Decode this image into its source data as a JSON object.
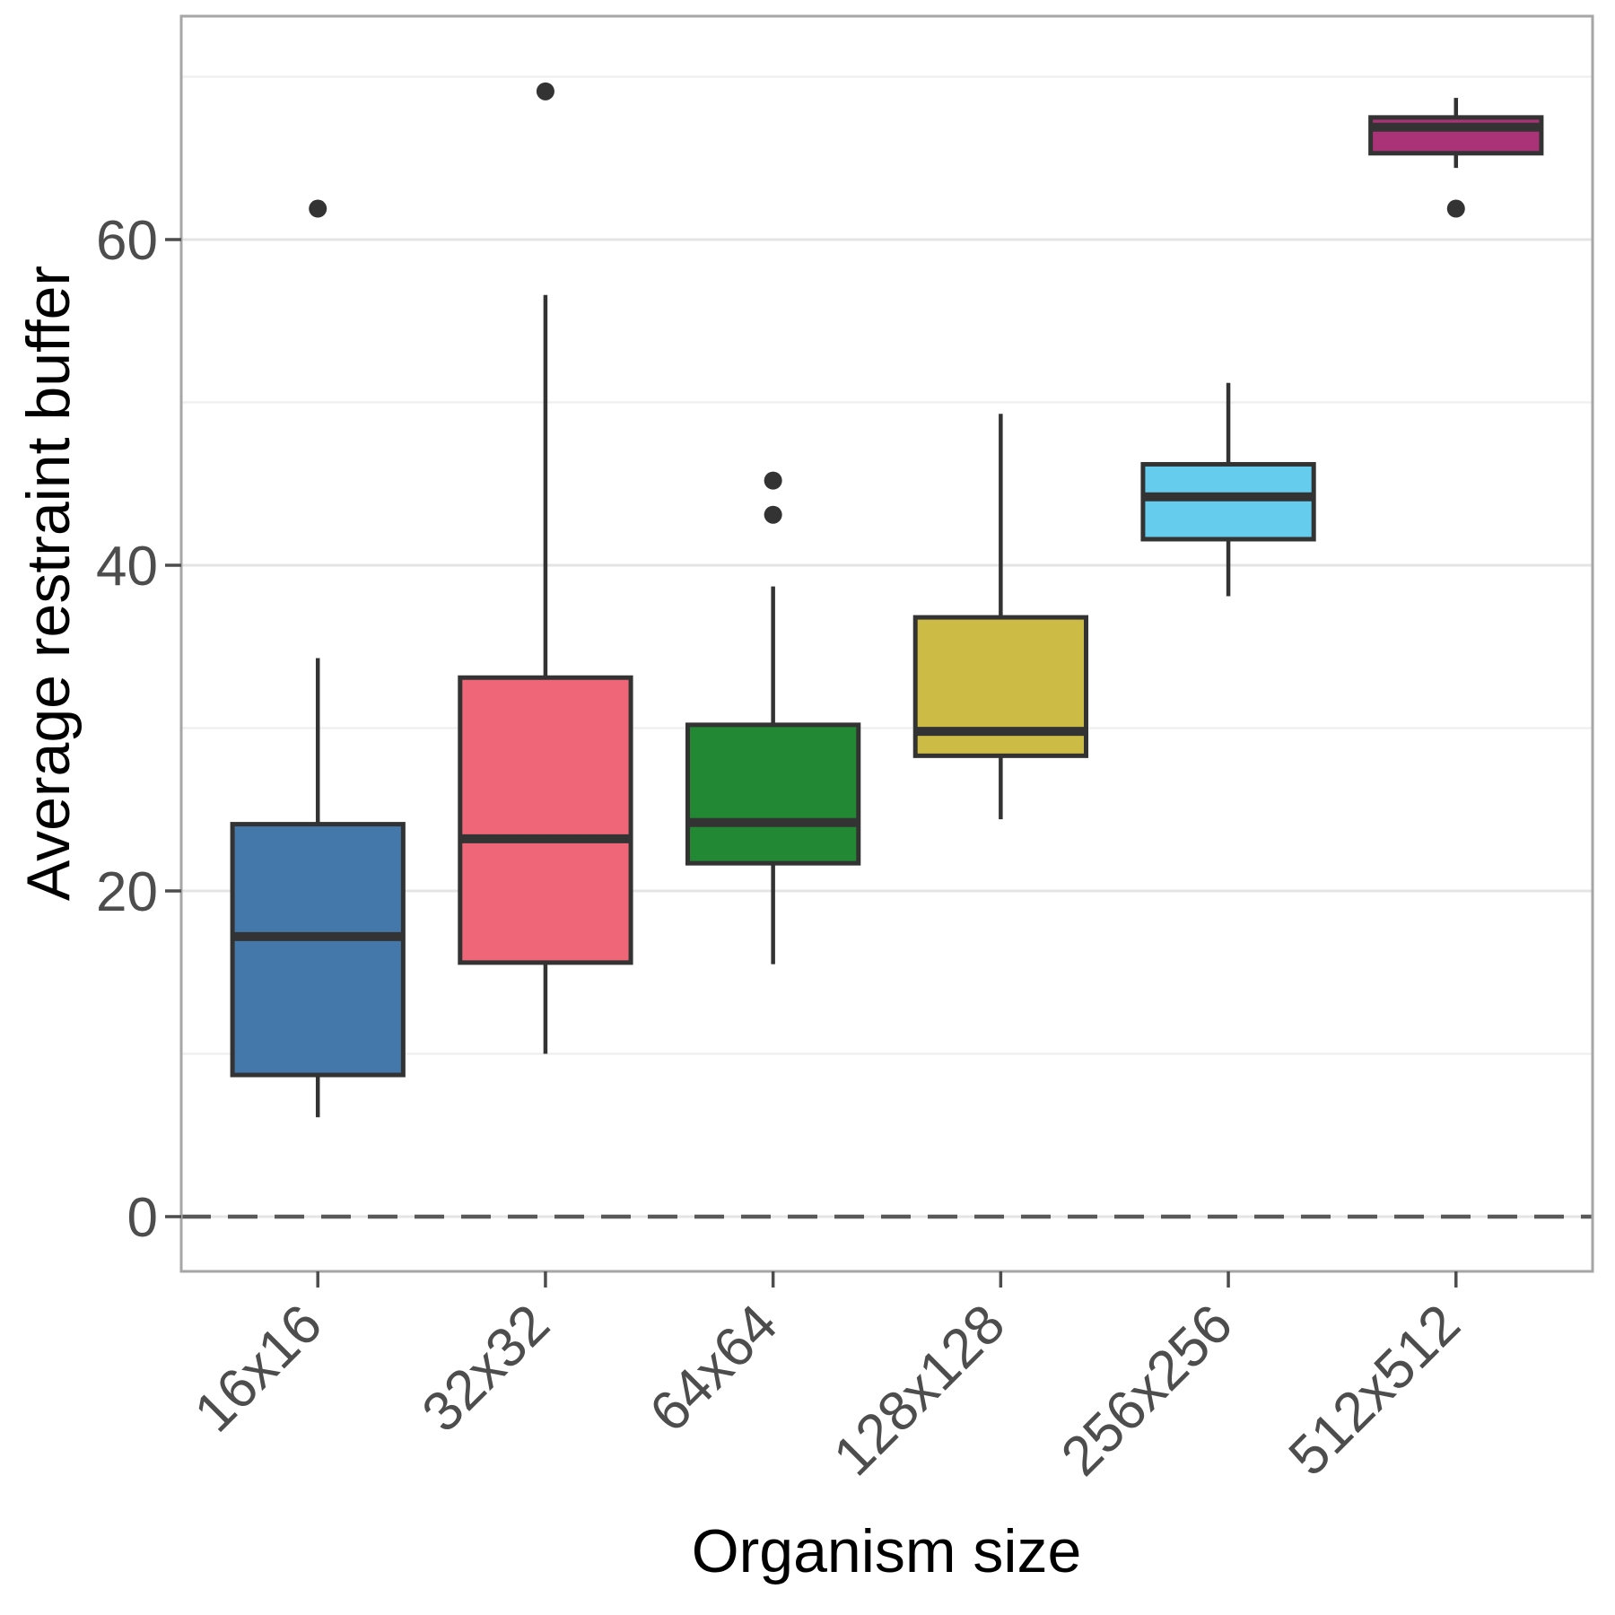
{
  "chart_data": {
    "type": "box",
    "title": "",
    "xlabel": "Organism size",
    "ylabel": "Average restraint buffer",
    "categories": [
      "16x16",
      "32x32",
      "64x64",
      "128x128",
      "256x256",
      "512x512"
    ],
    "series": [
      {
        "category": "16x16",
        "color": "#4477AA",
        "min": 6.1,
        "q1": 8.7,
        "median": 17.2,
        "q3": 24.1,
        "max": 34.3,
        "outliers": [
          61.9
        ]
      },
      {
        "category": "32x32",
        "color": "#EE6677",
        "min": 10.0,
        "q1": 15.6,
        "median": 23.2,
        "q3": 33.1,
        "max": 56.6,
        "outliers": [
          69.1
        ]
      },
      {
        "category": "64x64",
        "color": "#228833",
        "min": 15.5,
        "q1": 21.7,
        "median": 24.2,
        "q3": 30.2,
        "max": 38.7,
        "outliers": [
          43.1,
          45.2
        ]
      },
      {
        "category": "128x128",
        "color": "#CCBB44",
        "min": 24.4,
        "q1": 28.3,
        "median": 29.8,
        "q3": 36.8,
        "max": 49.3,
        "outliers": []
      },
      {
        "category": "256x256",
        "color": "#66CCEE",
        "min": 38.1,
        "q1": 41.6,
        "median": 44.2,
        "q3": 46.2,
        "max": 51.2,
        "outliers": []
      },
      {
        "category": "512x512",
        "color": "#AA3377",
        "min": 64.4,
        "q1": 65.3,
        "median": 66.9,
        "q3": 67.5,
        "max": 68.7,
        "outliers": [
          61.9
        ]
      }
    ],
    "y_axis": {
      "ticks": [
        0,
        20,
        40,
        60
      ],
      "minor_ticks": [
        10,
        30,
        50,
        70
      ],
      "ylim": [
        -3.5,
        73.7
      ]
    },
    "x_axis": {
      "tick_label_angle_deg": 45
    },
    "reference_line": {
      "y": 0,
      "style": "dashed"
    },
    "legend": "none",
    "grid": true,
    "colors": {
      "box_outline": "#333333",
      "median_line": "#333333",
      "whisker": "#333333",
      "outlier_point": "#333333",
      "grid_major": "#e4e4e4",
      "grid_minor": "#f0f0f0",
      "panel_border": "#a6a6a6",
      "tick_mark": "#4d4d4d",
      "tick_text": "#4d4d4d",
      "axis_title_text": "#000000",
      "reference_line": "#595959",
      "background": "#ffffff"
    }
  }
}
